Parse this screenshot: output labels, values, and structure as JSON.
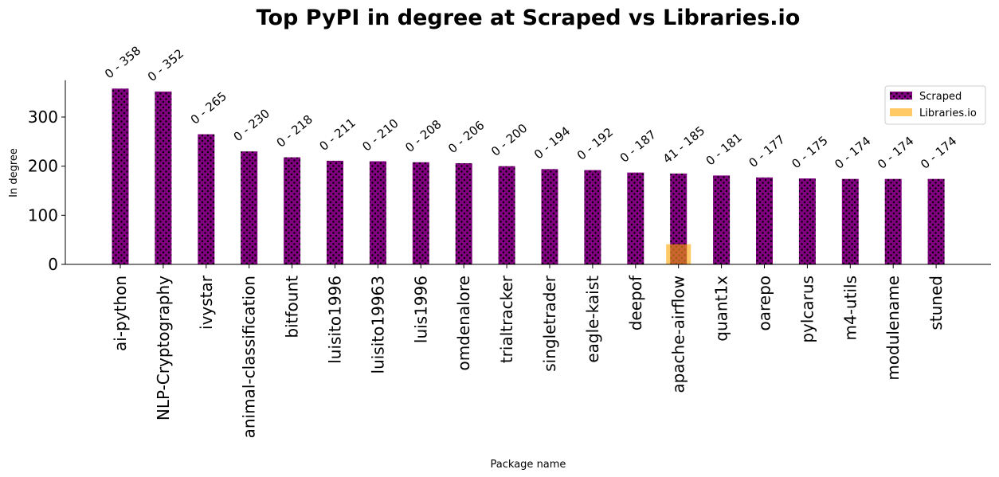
{
  "chart_data": {
    "type": "bar",
    "title": "Top PyPI in degree at Scraped vs Libraries.io",
    "xlabel": "Package name",
    "ylabel": "In degree",
    "ylim": [
      0,
      375
    ],
    "yticks": [
      0,
      100,
      200,
      300
    ],
    "grid": false,
    "legend_position": "top-right",
    "categories": [
      "ai-python",
      "NLP-Cryptography",
      "ivystar",
      "animal-classification",
      "bitfount",
      "luisito1996",
      "luisito19963",
      "luis1996",
      "omdenalore",
      "trialtracker",
      "singletrader",
      "eagle-kaist",
      "deepof",
      "apache-airflow",
      "quant1x",
      "oarepo",
      "pylcarus",
      "m4-utils",
      "modulename",
      "stuned"
    ],
    "series": [
      {
        "name": "Scraped",
        "color": "#800080",
        "hatch": "dots",
        "values": [
          358,
          352,
          265,
          230,
          218,
          211,
          210,
          208,
          206,
          200,
          194,
          192,
          187,
          185,
          181,
          177,
          175,
          174,
          174,
          174
        ]
      },
      {
        "name": "Libraries.io",
        "color": "#FFA500",
        "opacity": 0.6,
        "values": [
          0,
          0,
          0,
          0,
          0,
          0,
          0,
          0,
          0,
          0,
          0,
          0,
          0,
          41,
          0,
          0,
          0,
          0,
          0,
          0
        ]
      }
    ],
    "bar_labels": [
      "0 - 358",
      "0 - 352",
      "0 - 265",
      "0 - 230",
      "0 - 218",
      "0 - 211",
      "0 - 210",
      "0 - 208",
      "0 - 206",
      "0 - 200",
      "0 - 194",
      "0 - 192",
      "0 - 187",
      "41 - 185",
      "0 - 181",
      "0 - 177",
      "0 - 175",
      "0 - 174",
      "0 - 174",
      "0 - 174"
    ]
  }
}
